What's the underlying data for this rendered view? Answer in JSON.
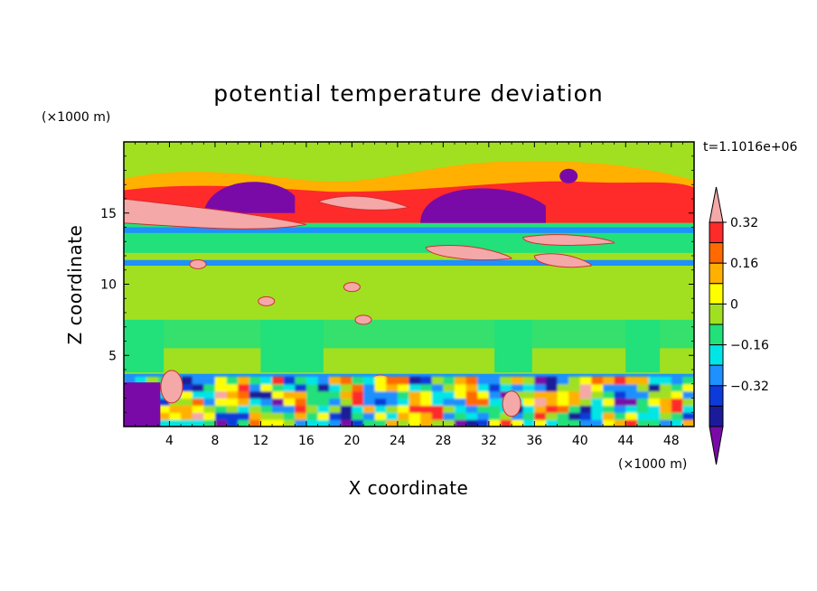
{
  "chart_data": {
    "type": "heatmap",
    "title": "potential temperature deviation",
    "xlabel": "X coordinate",
    "ylabel": "Z coordinate",
    "x_unit": "(×1000 m)",
    "y_unit": "(×1000 m)",
    "time_label": "t=1.1016e+06",
    "xlim": [
      0,
      50
    ],
    "ylim": [
      0,
      20
    ],
    "x_ticks": [
      4,
      8,
      12,
      16,
      20,
      24,
      28,
      32,
      36,
      40,
      44,
      48
    ],
    "y_ticks": [
      5,
      10,
      15
    ],
    "colorbar": {
      "levels": [
        -0.4,
        -0.32,
        -0.24,
        -0.16,
        -0.08,
        0,
        0.08,
        0.16,
        0.24,
        0.32,
        0.4
      ],
      "labeled_levels": [
        "0.32",
        "0.16",
        "0",
        "−0.16",
        "−0.32"
      ],
      "colors": [
        "#7a0aa8",
        "#1a1a9a",
        "#0d3ad9",
        "#1e90ff",
        "#00e6e6",
        "#22e07a",
        "#a0e020",
        "#ffff00",
        "#ffb000",
        "#ff6a00",
        "#ff2a2a",
        "#f5a8a8"
      ]
    },
    "fields": [
      {
        "name": "bg_green",
        "level": 0.04,
        "x": [
          0,
          50
        ],
        "z": [
          0,
          20
        ]
      },
      {
        "name": "band_cyan_upper",
        "level": -0.04,
        "x": [
          0,
          50
        ],
        "z": [
          12.2,
          14.3
        ]
      },
      {
        "name": "band_blue_top",
        "level": -0.24,
        "x": [
          0,
          50
        ],
        "z": [
          13.6,
          14.0
        ]
      },
      {
        "name": "band_blue_mid",
        "level": -0.2,
        "x": [
          0,
          50
        ],
        "z": [
          11.3,
          11.7
        ]
      },
      {
        "name": "band_lime_low",
        "level": 0.06,
        "x": [
          0,
          50
        ],
        "z": [
          3.8,
          9.5
        ]
      },
      {
        "name": "band_cyan_low",
        "level": -0.04,
        "x": [
          0,
          50
        ],
        "z": [
          5.5,
          7.5
        ]
      },
      {
        "name": "band_blue_base",
        "level": -0.24,
        "x": [
          0,
          50
        ],
        "z": [
          3.4,
          3.7
        ]
      },
      {
        "name": "pink_upper_left",
        "level": 0.45,
        "x": [
          0,
          16
        ],
        "z": [
          14.1,
          16.0
        ]
      },
      {
        "name": "purple_blob_left",
        "level": -0.45,
        "x": [
          7,
          15
        ],
        "z": [
          15.0,
          17.5
        ]
      },
      {
        "name": "purple_blob_right",
        "level": -0.45,
        "x": [
          26,
          37
        ],
        "z": [
          14.2,
          17.1
        ]
      },
      {
        "name": "pink_mid_right",
        "level": 0.45,
        "x": [
          26,
          46
        ],
        "z": [
          11.2,
          13.8
        ]
      },
      {
        "name": "surface_layer",
        "level": 0.0,
        "x": [
          0,
          50
        ],
        "z": [
          0,
          3.5
        ]
      }
    ]
  }
}
